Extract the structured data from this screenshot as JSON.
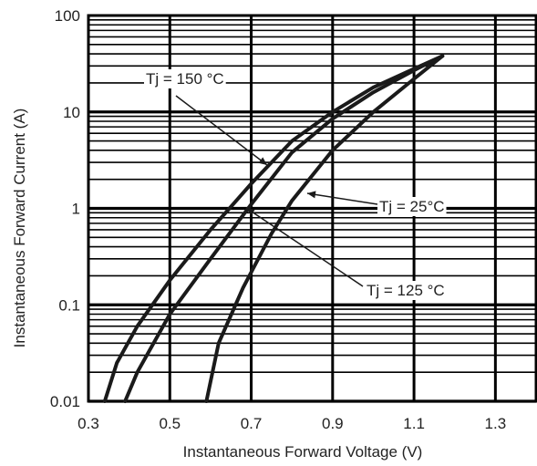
{
  "chart_data": {
    "type": "line",
    "xlabel": "Instantaneous Forward Voltage (V)",
    "ylabel": "Instantaneous Forward Current (A)",
    "xlim": [
      0.3,
      1.4
    ],
    "ylim": [
      0.01,
      100
    ],
    "y_scale": "log",
    "grid": true,
    "x_ticks": [
      "0.3",
      "0.5",
      "0.7",
      "0.9",
      "1.1",
      "1.3"
    ],
    "y_ticks": [
      "0.01",
      "0.1",
      "1",
      "10",
      "100"
    ],
    "series": [
      {
        "name": "Tj = 150 °C",
        "x": [
          0.34,
          0.37,
          0.42,
          0.5,
          0.6,
          0.7,
          0.8,
          0.9,
          1.0,
          1.1,
          1.17
        ],
        "y": [
          0.01,
          0.025,
          0.06,
          0.18,
          0.6,
          1.8,
          5,
          10,
          18,
          28,
          38
        ]
      },
      {
        "name": "Tj = 125 °C",
        "x": [
          0.39,
          0.42,
          0.5,
          0.6,
          0.7,
          0.8,
          0.9,
          1.0,
          1.1,
          1.17
        ],
        "y": [
          0.01,
          0.02,
          0.08,
          0.3,
          1.1,
          3.8,
          8.5,
          16,
          27,
          38
        ]
      },
      {
        "name": "Tj = 25°C",
        "x": [
          0.59,
          0.62,
          0.68,
          0.75,
          0.8,
          0.9,
          1.0,
          1.1,
          1.17
        ],
        "y": [
          0.01,
          0.04,
          0.15,
          0.55,
          1.2,
          4,
          10,
          22,
          38
        ]
      }
    ],
    "annotations": [
      {
        "text": "Tj = 150 °C",
        "series": 0
      },
      {
        "text": "Tj = 25°C",
        "series": 2
      },
      {
        "text": "Tj = 125 °C",
        "series": 1
      }
    ]
  }
}
